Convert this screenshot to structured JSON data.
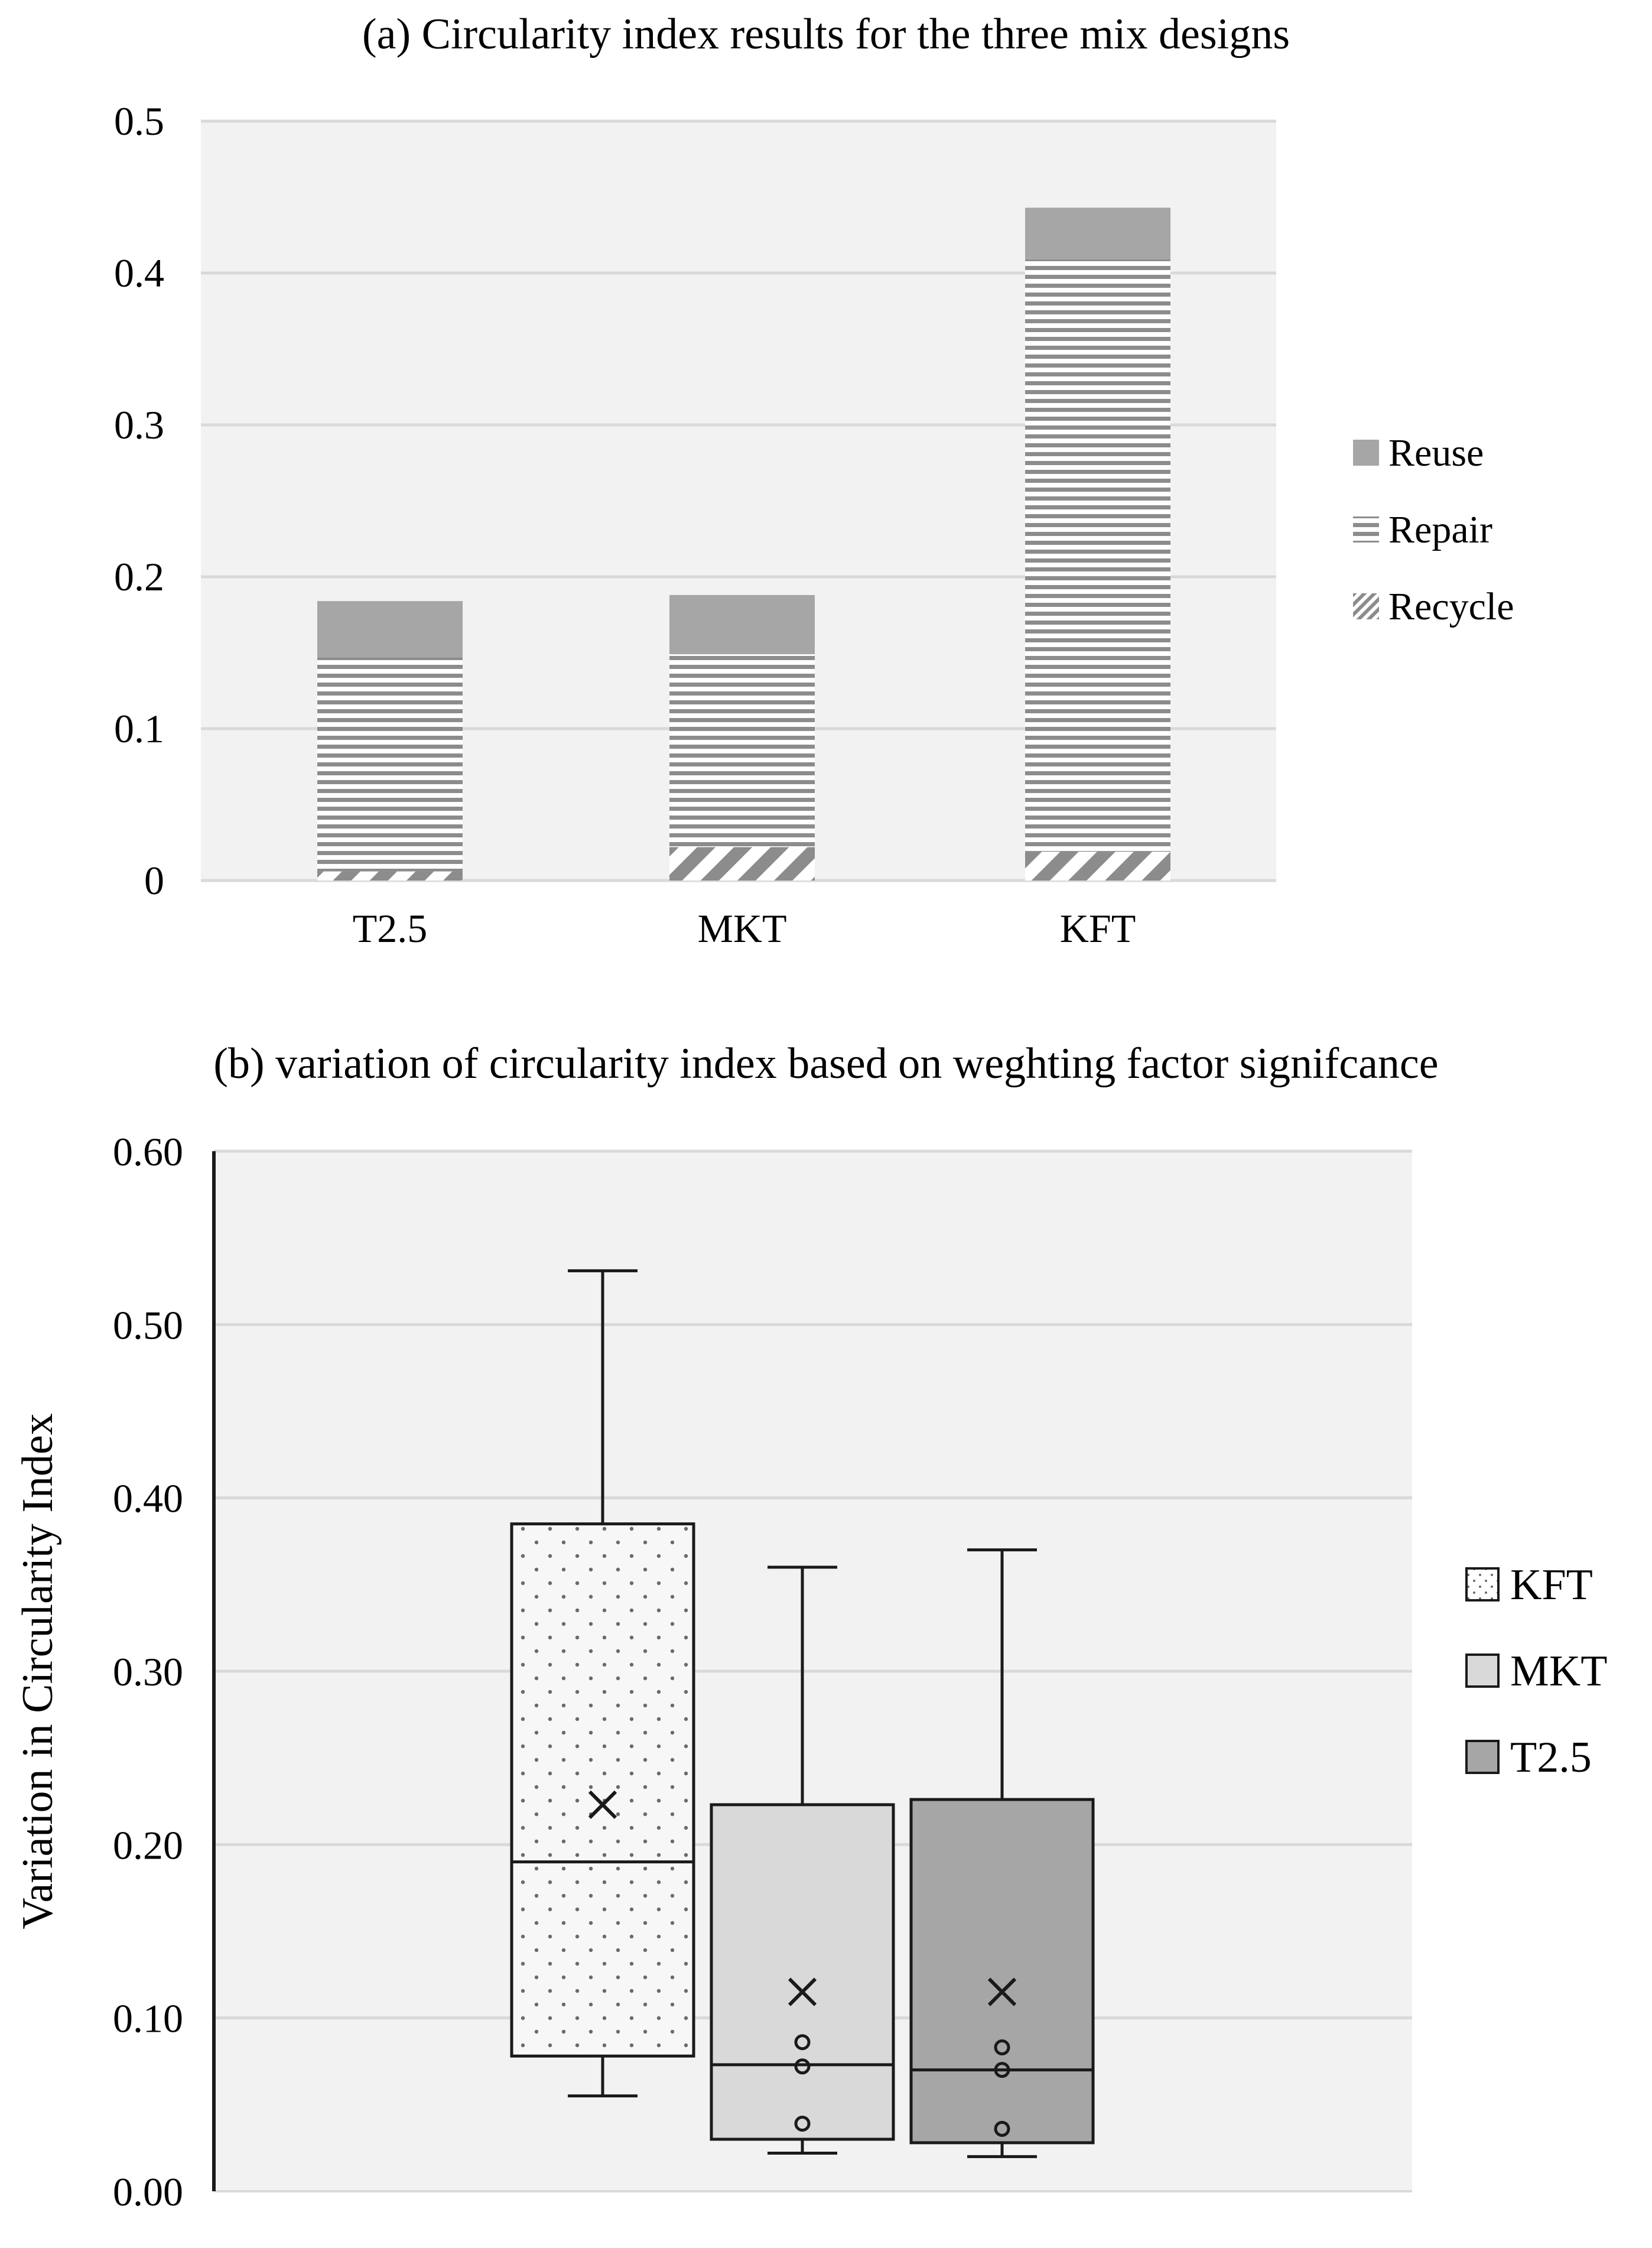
{
  "chart_data": [
    {
      "type": "bar",
      "stacked": true,
      "title": "(a) Circularity index results for the three mix designs",
      "categories": [
        "T2.5",
        "MKT",
        "KFT"
      ],
      "series": [
        {
          "name": "Recycle",
          "values": [
            0.006,
            0.022,
            0.019
          ]
        },
        {
          "name": "Repair",
          "values": [
            0.141,
            0.127,
            0.39
          ]
        },
        {
          "name": "Reuse",
          "values": [
            0.037,
            0.039,
            0.034
          ]
        }
      ],
      "legend_order": [
        "Reuse",
        "Repair",
        "Recycle"
      ],
      "ylim": [
        0,
        0.5
      ],
      "yticks": [
        "0",
        "0.1",
        "0.2",
        "0.3",
        "0.4",
        "0.5"
      ],
      "xlabel": "",
      "ylabel": "",
      "grid": true,
      "legend_position": "right"
    },
    {
      "type": "box",
      "title": "(b) variation of circularity index based on weghting factor signifcance",
      "ylabel": "Variation in Circularity Index",
      "ylim": [
        0,
        0.6
      ],
      "yticks": [
        "0.00",
        "0.10",
        "0.20",
        "0.30",
        "0.40",
        "0.50",
        "0.60"
      ],
      "grid": true,
      "legend_position": "right",
      "series": [
        {
          "name": "KFT",
          "min": 0.055,
          "q1": 0.078,
          "median": 0.19,
          "q3": 0.385,
          "max": 0.531,
          "mean": 0.223,
          "outliers": []
        },
        {
          "name": "MKT",
          "min": 0.022,
          "q1": 0.03,
          "median": 0.073,
          "q3": 0.223,
          "max": 0.36,
          "mean": 0.115,
          "outliers": [
            0.039,
            0.072,
            0.086
          ]
        },
        {
          "name": "T2.5",
          "min": 0.02,
          "q1": 0.028,
          "median": 0.07,
          "q3": 0.226,
          "max": 0.37,
          "mean": 0.115,
          "outliers": [
            0.036,
            0.07,
            0.083
          ]
        }
      ]
    }
  ],
  "colors": {
    "plot_bg": "#f2f2f2",
    "grid": "#d9d9d9",
    "reuse": "#a6a6a6",
    "repair": "#8c8c8c",
    "recycle": "#8c8c8c",
    "kft_box": "#f7f7f7",
    "mkt_box": "#d9d9d9",
    "t25_box": "#a6a6a6",
    "line": "#1a1a1a"
  }
}
